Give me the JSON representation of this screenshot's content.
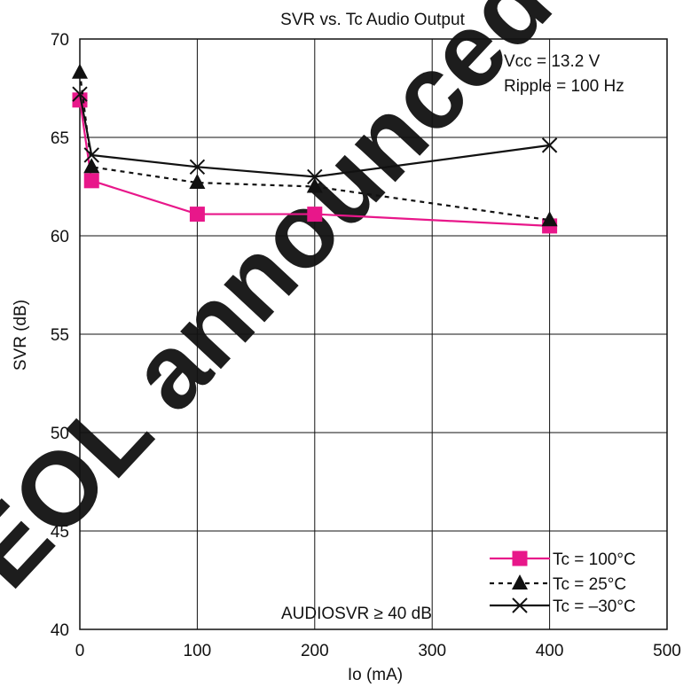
{
  "chart_data": {
    "type": "line",
    "title": "SVR vs. Tc  Audio Output",
    "xlabel": "Io   (mA)",
    "ylabel": "SVR   (dB)",
    "xlim": [
      0,
      500
    ],
    "ylim": [
      40,
      70
    ],
    "xticks": [
      0,
      100,
      200,
      300,
      400,
      500
    ],
    "yticks": [
      40,
      45,
      50,
      55,
      60,
      65,
      70
    ],
    "grid": true,
    "legend_position": "bottom-right",
    "annotations": [
      "Vcc = 13.2 V",
      "Ripple = 100 Hz"
    ],
    "condition_note": "AUDIOSVR ≥ 40 dB",
    "watermark": "EOL announced",
    "series": [
      {
        "name": "Tc = 100°C",
        "color": "#e8178a",
        "line_style": "solid",
        "marker": "square",
        "x": [
          0,
          10,
          100,
          200,
          400
        ],
        "y": [
          66.9,
          62.8,
          61.1,
          61.1,
          60.5
        ]
      },
      {
        "name": "Tc = 25°C",
        "color": "#111111",
        "line_style": "dotted",
        "marker": "triangle",
        "x": [
          0,
          10,
          100,
          200,
          400
        ],
        "y": [
          68.3,
          63.5,
          62.7,
          62.5,
          60.8
        ]
      },
      {
        "name": "Tc = –30°C",
        "color": "#111111",
        "line_style": "solid",
        "marker": "x",
        "x": [
          0,
          10,
          100,
          200,
          400
        ],
        "y": [
          67.2,
          64.1,
          63.5,
          63.0,
          64.6
        ]
      }
    ]
  }
}
